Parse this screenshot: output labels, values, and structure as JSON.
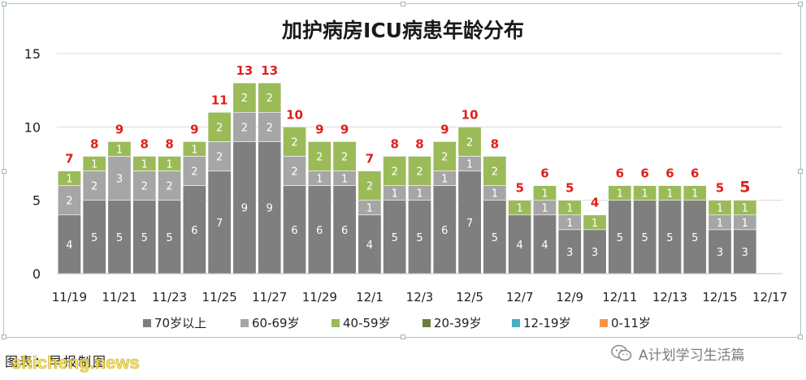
{
  "chart_data": {
    "type": "bar",
    "stacked": true,
    "title": "加护病房ICU病患年龄分布",
    "ylim": [
      0,
      15
    ],
    "yticks": [
      0,
      5,
      10,
      15
    ],
    "categories": [
      "11/19",
      "11/20",
      "11/21",
      "11/22",
      "11/23",
      "11/24",
      "11/25",
      "11/26",
      "11/27",
      "11/28",
      "11/29",
      "11/30",
      "12/1",
      "12/2",
      "12/3",
      "12/4",
      "12/5",
      "12/6",
      "12/7",
      "12/8",
      "12/9",
      "12/10",
      "12/11",
      "12/12",
      "12/13",
      "12/14",
      "12/15",
      "12/16",
      "12/17"
    ],
    "xtick_labels": [
      "11/19",
      "11/21",
      "11/23",
      "11/25",
      "11/27",
      "11/29",
      "12/1",
      "12/3",
      "12/5",
      "12/7",
      "12/9",
      "12/11",
      "12/13",
      "12/15",
      "12/17"
    ],
    "series": [
      {
        "name": "70岁以上",
        "color": "#7f7f7f",
        "label_color": "#ffffff",
        "values": [
          4,
          5,
          5,
          5,
          5,
          6,
          7,
          9,
          9,
          6,
          6,
          6,
          4,
          5,
          5,
          6,
          7,
          5,
          4,
          4,
          3,
          3,
          5,
          5,
          5,
          5,
          3,
          3,
          null
        ]
      },
      {
        "name": "60-69岁",
        "color": "#a6a6a6",
        "label_color": "#ffffff",
        "values": [
          2,
          2,
          3,
          2,
          2,
          2,
          2,
          2,
          2,
          2,
          1,
          1,
          1,
          1,
          1,
          1,
          1,
          1,
          0,
          1,
          1,
          0,
          0,
          0,
          0,
          0,
          1,
          1,
          null
        ]
      },
      {
        "name": "40-59岁",
        "color": "#9bbb59",
        "label_color": "#ffffff",
        "values": [
          1,
          1,
          1,
          1,
          1,
          1,
          2,
          2,
          2,
          2,
          2,
          2,
          2,
          2,
          2,
          2,
          2,
          2,
          1,
          1,
          1,
          1,
          1,
          1,
          1,
          1,
          1,
          1,
          null
        ]
      },
      {
        "name": "20-39岁",
        "color": "#6b7f3a",
        "label_color": "#ffffff",
        "values": [
          0,
          0,
          0,
          0,
          0,
          0,
          0,
          0,
          0,
          0,
          0,
          0,
          0,
          0,
          0,
          0,
          0,
          0,
          0,
          0,
          0,
          0,
          0,
          0,
          0,
          0,
          0,
          0,
          null
        ]
      },
      {
        "name": "12-19岁",
        "color": "#4bacc6",
        "label_color": "#ffffff",
        "values": [
          0,
          0,
          0,
          0,
          0,
          0,
          0,
          0,
          0,
          0,
          0,
          0,
          0,
          0,
          0,
          0,
          0,
          0,
          0,
          0,
          0,
          0,
          0,
          0,
          0,
          0,
          0,
          0,
          null
        ]
      },
      {
        "name": "0-11岁",
        "color": "#f79646",
        "label_color": "#ffffff",
        "values": [
          0,
          0,
          0,
          0,
          0,
          0,
          0,
          0,
          0,
          0,
          0,
          0,
          0,
          0,
          0,
          0,
          0,
          0,
          0,
          0,
          0,
          0,
          0,
          0,
          0,
          0,
          0,
          0,
          null
        ]
      }
    ],
    "totals": [
      7,
      8,
      9,
      8,
      8,
      9,
      11,
      13,
      13,
      10,
      9,
      9,
      7,
      8,
      8,
      9,
      10,
      8,
      5,
      6,
      5,
      4,
      6,
      6,
      6,
      6,
      5,
      5,
      null
    ],
    "total_label_color": "#e0201b",
    "legend_position": "bottom",
    "grid": true
  },
  "caption": "图表：早报制图",
  "watermark_site": "shicheng.news",
  "watermark_account": "A计划学习生活篇"
}
